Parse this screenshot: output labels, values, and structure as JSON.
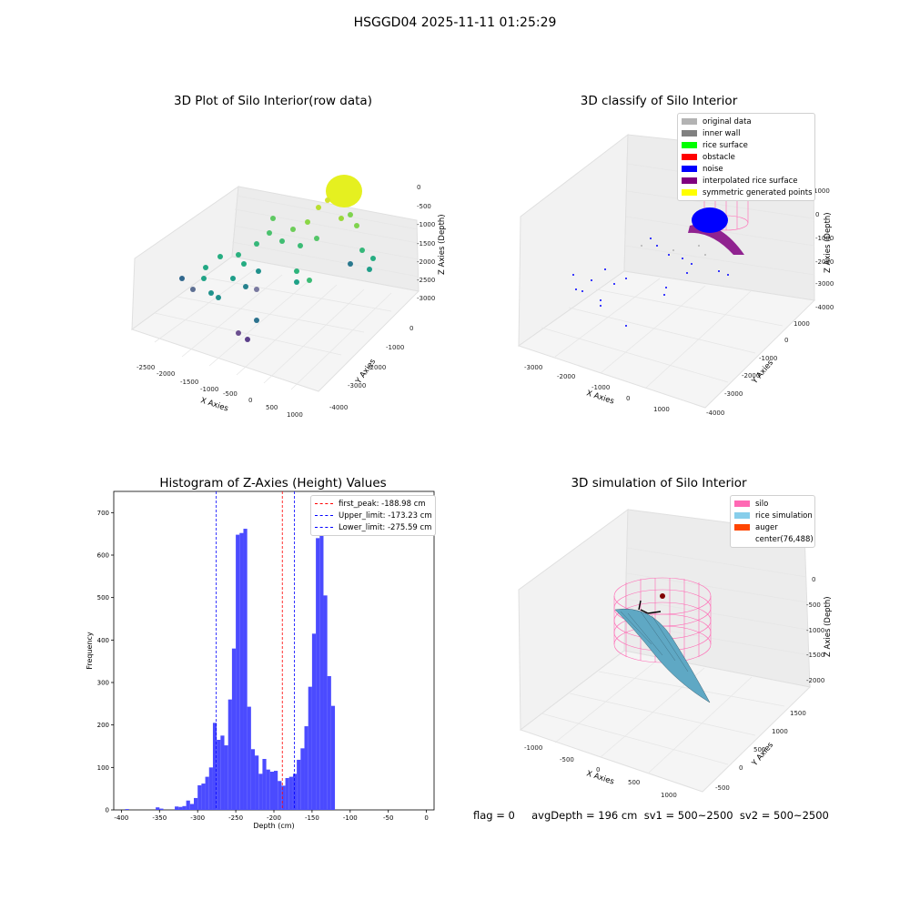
{
  "suptitle": "HSGGD04 2025-11-11 01:25:29",
  "panels": {
    "raw": {
      "title": "3D Plot of Silo Interior(row data)",
      "xlabel": "X Axies",
      "ylabel": "Y Axies",
      "zlabel": "Z Axies (Depth)",
      "xticks": [
        "-2500",
        "-2000",
        "-1500",
        "-1000",
        "-500",
        "0",
        "500",
        "1000"
      ],
      "yticks": [
        "0",
        "-1000",
        "-2000",
        "-3000",
        "-4000"
      ],
      "zticks": [
        "0",
        "-500",
        "-1000",
        "-1500",
        "-2000",
        "-2500",
        "-3000"
      ]
    },
    "classify": {
      "title": "3D classify of Silo Interior",
      "xlabel": "X Axies",
      "ylabel": "Y Axies",
      "zlabel": "Z Axies (Depth)",
      "xticks": [
        "-3000",
        "-2000",
        "-1000",
        "0",
        "1000"
      ],
      "yticks": [
        "1000",
        "0",
        "-1000",
        "-2000",
        "-3000",
        "-4000"
      ],
      "zticks": [
        "1000",
        "0",
        "-1000",
        "-2000",
        "-3000",
        "-4000"
      ],
      "legend": [
        {
          "label": "original data",
          "color": "#b3b3b3"
        },
        {
          "label": "inner wall",
          "color": "#808080"
        },
        {
          "label": "rice surface",
          "color": "#00ff00"
        },
        {
          "label": "obstacle",
          "color": "#ff0000"
        },
        {
          "label": "noise",
          "color": "#0000ff"
        },
        {
          "label": "interpolated rice surface",
          "color": "#800080"
        },
        {
          "label": "symmetric generated points",
          "color": "#ffff00"
        }
      ]
    },
    "histogram": {
      "title": "Histogram of Z-Axies (Height) Values",
      "xlabel": "Depth (cm)",
      "ylabel": "Frequency",
      "legend": [
        {
          "label": "first_peak: -188.98 cm",
          "color": "#ff0000"
        },
        {
          "label": "Upper_limit: -173.23 cm",
          "color": "#0000ff"
        },
        {
          "label": "Lower_limit: -275.59 cm",
          "color": "#0000ff"
        }
      ]
    },
    "simulation": {
      "title": "3D simulation of Silo Interior",
      "xlabel": "X Axies",
      "ylabel": "Y Axies",
      "zlabel": "Z Axies (Depth)",
      "xticks": [
        "-1000",
        "-500",
        "0",
        "500",
        "1000"
      ],
      "yticks": [
        "1500",
        "1000",
        "500",
        "0",
        "-500"
      ],
      "zticks": [
        "0",
        "-500",
        "-1000",
        "-1500",
        "-2000"
      ],
      "legend": [
        {
          "label": "silo",
          "color": "#ff69b4"
        },
        {
          "label": "rice simulation",
          "color": "#87ceeb"
        },
        {
          "label": "auger",
          "color": "#ff4500"
        },
        {
          "label": "center(76,488)",
          "color": "#ffffff"
        }
      ]
    }
  },
  "footer": "flag = 0     avgDepth = 196 cm  sv1 = 500~2500  sv2 = 500~2500",
  "chart_data": [
    {
      "type": "bar",
      "title": "Histogram of Z-Axies (Height) Values",
      "xlabel": "Depth (cm)",
      "ylabel": "Frequency",
      "bar_color": "#4b4bff",
      "xlim": [
        -410,
        10
      ],
      "ylim": [
        0,
        750
      ],
      "xticks": [
        -400,
        -350,
        -300,
        -250,
        -200,
        -150,
        -100,
        -50,
        0
      ],
      "yticks": [
        0,
        100,
        200,
        300,
        400,
        500,
        600,
        700
      ],
      "bins": [
        {
          "x0": -395,
          "x1": -390,
          "v": 2
        },
        {
          "x0": -355,
          "x1": -350,
          "v": 6
        },
        {
          "x0": -350,
          "x1": -345,
          "v": 3
        },
        {
          "x0": -330,
          "x1": -325,
          "v": 8
        },
        {
          "x0": -325,
          "x1": -320,
          "v": 7
        },
        {
          "x0": -320,
          "x1": -315,
          "v": 9
        },
        {
          "x0": -315,
          "x1": -310,
          "v": 22
        },
        {
          "x0": -310,
          "x1": -305,
          "v": 14
        },
        {
          "x0": -305,
          "x1": -300,
          "v": 28
        },
        {
          "x0": -300,
          "x1": -295,
          "v": 58
        },
        {
          "x0": -295,
          "x1": -290,
          "v": 62
        },
        {
          "x0": -290,
          "x1": -285,
          "v": 78
        },
        {
          "x0": -285,
          "x1": -280,
          "v": 100
        },
        {
          "x0": -280,
          "x1": -275,
          "v": 205
        },
        {
          "x0": -275,
          "x1": -270,
          "v": 165
        },
        {
          "x0": -270,
          "x1": -265,
          "v": 175
        },
        {
          "x0": -265,
          "x1": -260,
          "v": 152
        },
        {
          "x0": -260,
          "x1": -255,
          "v": 260
        },
        {
          "x0": -255,
          "x1": -250,
          "v": 380
        },
        {
          "x0": -250,
          "x1": -245,
          "v": 648
        },
        {
          "x0": -245,
          "x1": -240,
          "v": 652
        },
        {
          "x0": -240,
          "x1": -235,
          "v": 662
        },
        {
          "x0": -235,
          "x1": -230,
          "v": 243
        },
        {
          "x0": -230,
          "x1": -225,
          "v": 143
        },
        {
          "x0": -225,
          "x1": -220,
          "v": 128
        },
        {
          "x0": -220,
          "x1": -215,
          "v": 85
        },
        {
          "x0": -215,
          "x1": -210,
          "v": 120
        },
        {
          "x0": -210,
          "x1": -205,
          "v": 95
        },
        {
          "x0": -205,
          "x1": -200,
          "v": 90
        },
        {
          "x0": -200,
          "x1": -195,
          "v": 92
        },
        {
          "x0": -195,
          "x1": -190,
          "v": 68
        },
        {
          "x0": -190,
          "x1": -185,
          "v": 57
        },
        {
          "x0": -185,
          "x1": -180,
          "v": 75
        },
        {
          "x0": -180,
          "x1": -175,
          "v": 78
        },
        {
          "x0": -175,
          "x1": -170,
          "v": 85
        },
        {
          "x0": -170,
          "x1": -165,
          "v": 118
        },
        {
          "x0": -165,
          "x1": -160,
          "v": 145
        },
        {
          "x0": -160,
          "x1": -155,
          "v": 197
        },
        {
          "x0": -155,
          "x1": -150,
          "v": 290
        },
        {
          "x0": -150,
          "x1": -145,
          "v": 415
        },
        {
          "x0": -145,
          "x1": -140,
          "v": 640
        },
        {
          "x0": -140,
          "x1": -135,
          "v": 715
        },
        {
          "x0": -135,
          "x1": -130,
          "v": 505
        },
        {
          "x0": -130,
          "x1": -125,
          "v": 315
        },
        {
          "x0": -125,
          "x1": -120,
          "v": 245
        }
      ],
      "vlines": [
        {
          "x": -188.98,
          "color": "#ff0000"
        },
        {
          "x": -173.23,
          "color": "#0000ff"
        },
        {
          "x": -275.59,
          "color": "#0000ff"
        }
      ]
    }
  ]
}
